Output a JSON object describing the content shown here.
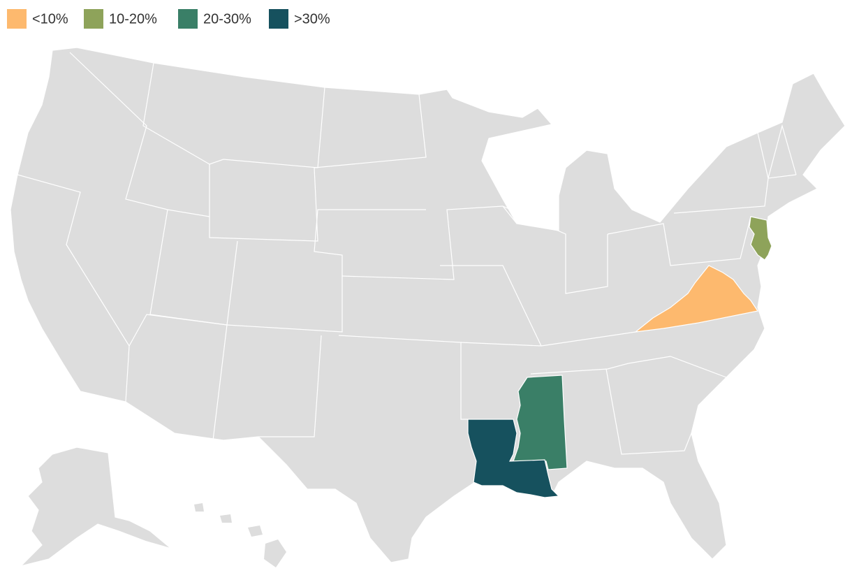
{
  "legend": [
    {
      "label": "<10%",
      "color": "#fdb96e"
    },
    {
      "label": "10-20%",
      "color": "#8ea35a"
    },
    {
      "label": "20-30%",
      "color": "#3a7f67"
    },
    {
      "label": ">30%",
      "color": "#16515e"
    }
  ],
  "base_color": "#dddddd"
}
